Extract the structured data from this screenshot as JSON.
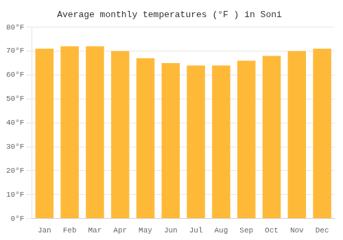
{
  "chart_data": {
    "type": "bar",
    "title": "Average monthly temperatures (°F ) in Soni",
    "categories": [
      "Jan",
      "Feb",
      "Mar",
      "Apr",
      "May",
      "Jun",
      "Jul",
      "Aug",
      "Sep",
      "Oct",
      "Nov",
      "Dec"
    ],
    "values": [
      71,
      72,
      72,
      70,
      67,
      65,
      64,
      64,
      66,
      68,
      70,
      71
    ],
    "color": "#FFB939",
    "ylim": [
      0,
      80
    ],
    "yticks": [
      {
        "value": 0,
        "label": "0°F"
      },
      {
        "value": 10,
        "label": "10°F"
      },
      {
        "value": 20,
        "label": "20°F"
      },
      {
        "value": 30,
        "label": "30°F"
      },
      {
        "value": 40,
        "label": "40°F"
      },
      {
        "value": 50,
        "label": "50°F"
      },
      {
        "value": 60,
        "label": "60°F"
      },
      {
        "value": 70,
        "label": "70°F"
      },
      {
        "value": 80,
        "label": "80°F"
      }
    ],
    "grid": true
  }
}
